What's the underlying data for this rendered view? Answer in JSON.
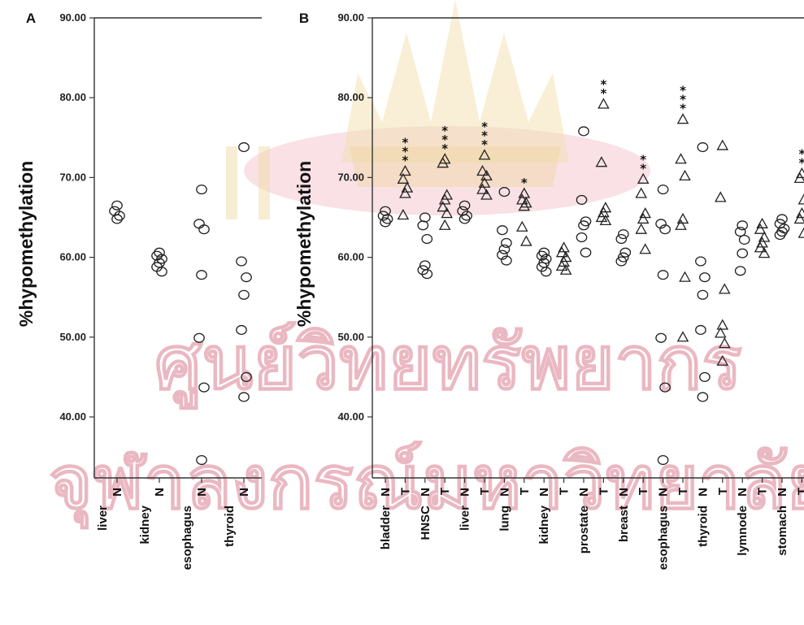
{
  "chart_data": [
    {
      "panel_label": "A",
      "type": "scatter",
      "ylabel": "%hypomethylation",
      "ylim": [
        33,
        90
      ],
      "yticks": [
        "90.00",
        "80.00",
        "70.00",
        "60.00",
        "50.00",
        "40.00"
      ],
      "marker": "circle",
      "groups": [
        {
          "name": "liver",
          "label": "N",
          "marker": "circle",
          "values": [
            66.5,
            65.8,
            65.2,
            64.8
          ]
        },
        {
          "name": "kidney",
          "label": "N",
          "marker": "circle",
          "values": [
            60.6,
            60.2,
            59.8,
            59.3,
            58.8,
            58.2
          ]
        },
        {
          "name": "esophagus",
          "label": "N",
          "marker": "circle",
          "values": [
            68.5,
            64.2,
            63.5,
            57.8,
            49.9,
            43.7,
            34.6
          ]
        },
        {
          "name": "thyroid",
          "label": "N",
          "marker": "circle",
          "values": [
            73.8,
            59.5,
            57.5,
            55.3,
            50.9,
            45.0,
            42.5
          ]
        }
      ]
    },
    {
      "panel_label": "B",
      "type": "scatter",
      "ylabel": "%hypomethylation",
      "ylim": [
        33,
        90
      ],
      "yticks": [
        "90.00",
        "80.00",
        "70.00",
        "60.00",
        "50.00",
        "40.00"
      ],
      "tissues": [
        "bladder",
        "HNSC",
        "liver",
        "lung",
        "kidney",
        "prostate",
        "breast",
        "esophagus",
        "thyroid",
        "lymnode",
        "stomach"
      ],
      "groups": [
        {
          "tissue": "bladder",
          "label": "N",
          "marker": "circle",
          "stars": "",
          "values": [
            65.8,
            65.2,
            64.8,
            64.4
          ]
        },
        {
          "tissue": "bladder",
          "label": "T",
          "marker": "triangle",
          "stars": "***",
          "values": [
            70.8,
            69.8,
            68.7,
            68.0,
            65.3
          ]
        },
        {
          "tissue": "HNSC",
          "label": "N",
          "marker": "circle",
          "stars": "",
          "values": [
            65.0,
            64.0,
            62.3,
            59.0,
            58.4,
            57.9
          ]
        },
        {
          "tissue": "HNSC",
          "label": "T",
          "marker": "triangle",
          "stars": "***",
          "values": [
            72.3,
            71.8,
            67.8,
            67.2,
            66.3,
            65.5,
            64.0
          ]
        },
        {
          "tissue": "liver",
          "label": "N",
          "marker": "circle",
          "stars": "",
          "values": [
            66.5,
            65.8,
            65.2,
            64.8
          ]
        },
        {
          "tissue": "liver",
          "label": "T",
          "marker": "triangle",
          "stars": "***",
          "values": [
            72.8,
            70.8,
            70.2,
            69.3,
            68.5,
            67.8
          ]
        },
        {
          "tissue": "lung",
          "label": "N",
          "marker": "circle",
          "stars": "",
          "values": [
            68.2,
            63.4,
            61.8,
            61.0,
            60.3,
            59.6
          ]
        },
        {
          "tissue": "lung",
          "label": "T",
          "marker": "triangle",
          "stars": "*",
          "values": [
            68.0,
            67.2,
            66.8,
            66.4,
            63.8,
            62.0
          ]
        },
        {
          "tissue": "kidney",
          "label": "N",
          "marker": "circle",
          "stars": "",
          "values": [
            60.6,
            60.2,
            59.8,
            59.3,
            58.8,
            58.2
          ]
        },
        {
          "tissue": "kidney",
          "label": "T",
          "marker": "triangle",
          "stars": "",
          "values": [
            61.2,
            60.6,
            60.0,
            59.4,
            58.9,
            58.4
          ]
        },
        {
          "tissue": "prostate",
          "label": "N",
          "marker": "circle",
          "stars": "",
          "values": [
            75.8,
            67.2,
            64.5,
            64.0,
            62.5,
            60.6
          ]
        },
        {
          "tissue": "prostate",
          "label": "T",
          "marker": "triangle",
          "stars": "**",
          "values": [
            79.2,
            71.9,
            66.2,
            65.6,
            65.0,
            64.6
          ]
        },
        {
          "tissue": "breast",
          "label": "N",
          "marker": "circle",
          "stars": "",
          "values": [
            62.9,
            62.3,
            60.6,
            60.0,
            59.5
          ]
        },
        {
          "tissue": "breast",
          "label": "T",
          "marker": "triangle",
          "stars": "**",
          "values": [
            69.8,
            68.0,
            65.5,
            64.8,
            63.5,
            61.0
          ]
        },
        {
          "tissue": "esophagus",
          "label": "N",
          "marker": "circle",
          "stars": "",
          "values": [
            68.5,
            64.2,
            63.5,
            57.8,
            49.9,
            43.7,
            34.6
          ]
        },
        {
          "tissue": "esophagus",
          "label": "T",
          "marker": "triangle",
          "stars": "***",
          "values": [
            77.3,
            72.3,
            70.2,
            64.8,
            64.0,
            57.5,
            50.0
          ]
        },
        {
          "tissue": "thyroid",
          "label": "N",
          "marker": "circle",
          "stars": "",
          "values": [
            73.8,
            59.5,
            57.5,
            55.3,
            50.9,
            45.0,
            42.5
          ]
        },
        {
          "tissue": "thyroid",
          "label": "T",
          "marker": "triangle",
          "stars": "",
          "values": [
            74.0,
            67.5,
            56.0,
            51.5,
            50.5,
            49.2,
            47.0
          ]
        },
        {
          "tissue": "lymnode",
          "label": "N",
          "marker": "circle",
          "stars": "",
          "values": [
            64.0,
            63.2,
            62.2,
            60.5,
            58.3
          ]
        },
        {
          "tissue": "lymnode",
          "label": "T",
          "marker": "triangle",
          "stars": "",
          "values": [
            64.2,
            63.5,
            62.5,
            61.8,
            61.2,
            60.5
          ]
        },
        {
          "tissue": "stomach",
          "label": "N",
          "marker": "circle",
          "stars": "",
          "values": [
            64.8,
            64.2,
            63.6,
            63.2,
            62.8
          ]
        },
        {
          "tissue": "stomach",
          "label": "T",
          "marker": "triangle",
          "stars": "**",
          "values": [
            70.5,
            69.9,
            67.2,
            65.5,
            64.8,
            63.0
          ]
        }
      ]
    }
  ]
}
